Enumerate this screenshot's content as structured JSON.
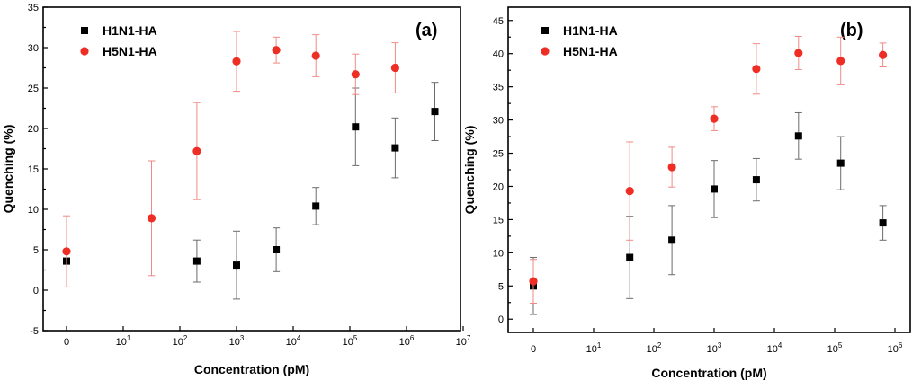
{
  "chart_data": [
    {
      "panel": "(a)",
      "type": "scatter",
      "xlabel": "Concentration (pM)",
      "ylabel": "Quenching (%)",
      "xscale": "log (first tick labeled 0)",
      "x_tick_labels": [
        {
          "base": "0",
          "exp": ""
        },
        {
          "base": "10",
          "exp": "1"
        },
        {
          "base": "10",
          "exp": "2"
        },
        {
          "base": "10",
          "exp": "3"
        },
        {
          "base": "10",
          "exp": "4"
        },
        {
          "base": "10",
          "exp": "5"
        },
        {
          "base": "10",
          "exp": "6"
        },
        {
          "base": "10",
          "exp": "7"
        }
      ],
      "ylim": [
        -5,
        35
      ],
      "y_ticks": [
        -5,
        0,
        5,
        10,
        15,
        20,
        25,
        30,
        35
      ],
      "legend_position": "top-left",
      "series": [
        {
          "name": "H1N1-HA",
          "marker": "square",
          "color": "#000000",
          "points": [
            {
              "x": 0,
              "y": 3.6,
              "err": 0.3
            },
            {
              "x": 2.3,
              "y": 3.6,
              "err": 2.6
            },
            {
              "x": 3.0,
              "y": 3.1,
              "err": 4.2
            },
            {
              "x": 3.7,
              "y": 5.0,
              "err": 2.7
            },
            {
              "x": 4.4,
              "y": 10.4,
              "err": 2.3
            },
            {
              "x": 5.1,
              "y": 20.2,
              "err": 4.8
            },
            {
              "x": 5.8,
              "y": 17.6,
              "err": 3.7
            },
            {
              "x": 6.5,
              "y": 22.1,
              "err": 3.6
            }
          ]
        },
        {
          "name": "H5N1-HA",
          "marker": "circle",
          "color": "#ee2e24",
          "points": [
            {
              "x": 0,
              "y": 4.8,
              "err": 4.4
            },
            {
              "x": 1.5,
              "y": 8.9,
              "err": 7.1
            },
            {
              "x": 2.3,
              "y": 17.2,
              "err": 6.0
            },
            {
              "x": 3.0,
              "y": 28.3,
              "err": 3.7
            },
            {
              "x": 3.7,
              "y": 29.7,
              "err": 1.6
            },
            {
              "x": 4.4,
              "y": 29.0,
              "err": 2.6
            },
            {
              "x": 5.1,
              "y": 26.7,
              "err": 2.5
            },
            {
              "x": 5.8,
              "y": 27.5,
              "err": 3.1
            }
          ]
        }
      ]
    },
    {
      "panel": "(b)",
      "type": "scatter",
      "xlabel": "Concentration (pM)",
      "ylabel": "Quenching (%)",
      "xscale": "log (first tick labeled 0)",
      "x_tick_labels": [
        {
          "base": "0",
          "exp": ""
        },
        {
          "base": "10",
          "exp": "1"
        },
        {
          "base": "10",
          "exp": "2"
        },
        {
          "base": "10",
          "exp": "3"
        },
        {
          "base": "10",
          "exp": "4"
        },
        {
          "base": "10",
          "exp": "5"
        },
        {
          "base": "10",
          "exp": "6"
        }
      ],
      "ylim": [
        -2,
        47
      ],
      "y_ticks": [
        0,
        5,
        10,
        15,
        20,
        25,
        30,
        35,
        40,
        45
      ],
      "legend_position": "top-left",
      "series": [
        {
          "name": "H1N1-HA",
          "marker": "square",
          "color": "#000000",
          "points": [
            {
              "x": 0,
              "y": 5.0,
              "err": 4.3
            },
            {
              "x": 1.6,
              "y": 9.3,
              "err": 6.2
            },
            {
              "x": 2.3,
              "y": 11.9,
              "err": 5.2
            },
            {
              "x": 3.0,
              "y": 19.6,
              "err": 4.3
            },
            {
              "x": 3.7,
              "y": 21.0,
              "err": 3.2
            },
            {
              "x": 4.4,
              "y": 27.6,
              "err": 3.5
            },
            {
              "x": 5.1,
              "y": 23.5,
              "err": 4.0
            },
            {
              "x": 5.8,
              "y": 14.5,
              "err": 2.6
            }
          ]
        },
        {
          "name": "H5N1-HA",
          "marker": "circle",
          "color": "#ee2e24",
          "points": [
            {
              "x": 0,
              "y": 5.7,
              "err": 3.3
            },
            {
              "x": 1.6,
              "y": 19.3,
              "err": 7.4
            },
            {
              "x": 2.3,
              "y": 22.9,
              "err": 3.0
            },
            {
              "x": 3.0,
              "y": 30.2,
              "err": 1.8
            },
            {
              "x": 3.7,
              "y": 37.7,
              "err": 3.8
            },
            {
              "x": 4.4,
              "y": 40.1,
              "err": 2.5
            },
            {
              "x": 5.1,
              "y": 38.9,
              "err": 3.6
            },
            {
              "x": 5.8,
              "y": 39.8,
              "err": 1.8
            }
          ]
        }
      ]
    }
  ]
}
